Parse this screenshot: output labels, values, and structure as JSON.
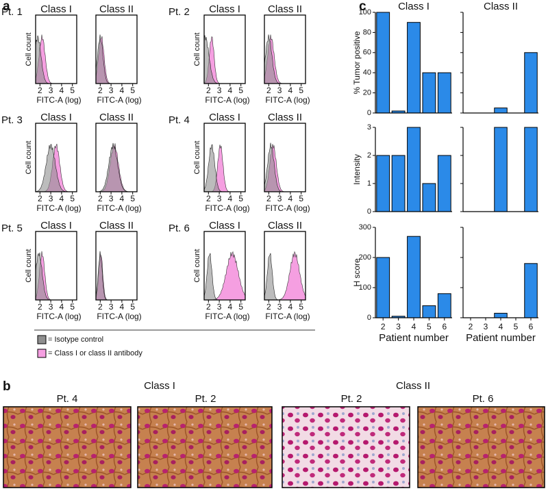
{
  "panel_a": {
    "label": "a",
    "y_label": "Cell count",
    "x_label": "FITC-A (log)",
    "class_names": [
      "Class I",
      "Class II"
    ],
    "xticks": [
      2,
      3,
      4,
      5
    ],
    "patients": [
      "Pt. 1",
      "Pt. 2",
      "Pt. 3",
      "Pt. 4",
      "Pt. 5",
      "Pt. 6"
    ],
    "legend": [
      "= Isotype control",
      "= Class I or class II antibody"
    ],
    "isotype_color": "#8f8f8f",
    "antibody_color": "#f59fe1"
  },
  "panel_b": {
    "label": "b",
    "groups": [
      {
        "title": "Class I",
        "images": [
          "Pt. 4",
          "Pt. 2"
        ]
      },
      {
        "title": "Class II",
        "images": [
          "Pt. 2",
          "Pt. 6"
        ]
      }
    ]
  },
  "panel_c": {
    "label": "c"
  },
  "chart_data": [
    {
      "type": "bar",
      "title": "Class I",
      "ylabel": "% Tumor positive",
      "categories": [
        null,
        null,
        null,
        null,
        null
      ],
      "values": [
        100,
        2,
        90,
        40,
        40
      ],
      "ylim": [
        0,
        100
      ],
      "yticks": [
        0,
        20,
        40,
        60,
        80,
        100
      ],
      "color": "#2b8ae8",
      "show_ytick_labels": true
    },
    {
      "type": "bar",
      "title": "Class II",
      "categories": [
        null,
        null,
        null,
        null,
        null
      ],
      "values": [
        0,
        0,
        5,
        0,
        60
      ],
      "ylim": [
        0,
        100
      ],
      "yticks": [
        0,
        20,
        40,
        60,
        80,
        100
      ],
      "color": "#2b8ae8",
      "show_ytick_labels": false
    },
    {
      "type": "bar",
      "ylabel": "Intensity",
      "categories": [
        null,
        null,
        null,
        null,
        null
      ],
      "values": [
        2,
        2,
        3,
        1,
        2
      ],
      "ylim": [
        0,
        3
      ],
      "yticks": [
        0,
        1,
        2,
        3
      ],
      "color": "#2b8ae8",
      "show_ytick_labels": true
    },
    {
      "type": "bar",
      "categories": [
        null,
        null,
        null,
        null,
        null
      ],
      "values": [
        0,
        0,
        3,
        0,
        3
      ],
      "ylim": [
        0,
        3
      ],
      "yticks": [
        0,
        1,
        2,
        3
      ],
      "color": "#2b8ae8",
      "show_ytick_labels": false
    },
    {
      "type": "bar",
      "ylabel": "H score",
      "xlabel": "Patient number",
      "categories": [
        "2",
        "3",
        "4",
        "5",
        "6"
      ],
      "values": [
        200,
        5,
        270,
        40,
        80
      ],
      "ylim": [
        0,
        300
      ],
      "yticks": [
        0,
        100,
        200,
        300
      ],
      "color": "#2b8ae8",
      "show_ytick_labels": true
    },
    {
      "type": "bar",
      "xlabel": "Patient number",
      "categories": [
        "2",
        "3",
        "4",
        "5",
        "6"
      ],
      "values": [
        0,
        0,
        15,
        0,
        180
      ],
      "ylim": [
        0,
        300
      ],
      "yticks": [
        0,
        100,
        200,
        300
      ],
      "color": "#2b8ae8",
      "show_ytick_labels": false
    }
  ]
}
